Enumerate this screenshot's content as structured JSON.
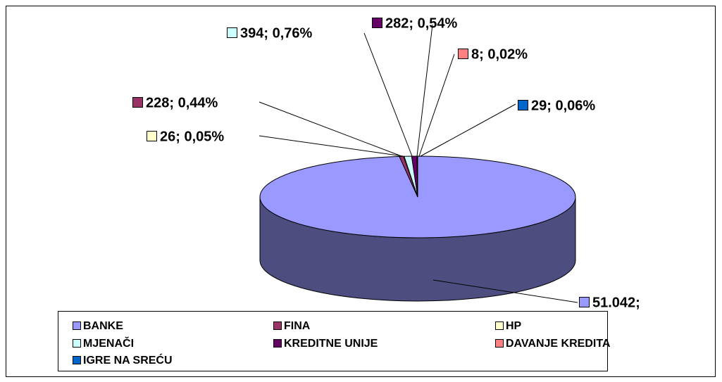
{
  "chart_data": {
    "type": "pie",
    "categories": [
      "BANKE",
      "FINA",
      "HP",
      "MJENAČI",
      "KREDITNE UNIJE",
      "DAVANJE KREDITA",
      "IGRE NA SREĆU"
    ],
    "values": [
      51042,
      228,
      26,
      394,
      282,
      8,
      29
    ],
    "value_labels": [
      "51.042;",
      "228; 0,44%",
      "26; 0,05%",
      "394; 0,76%",
      "282; 0,54%",
      "8; 0,02%",
      "29; 0,06%"
    ],
    "colors": [
      "#9999ff",
      "#993366",
      "#ffffcc",
      "#ccffff",
      "#660066",
      "#ff8080",
      "#0066cc"
    ],
    "legend": "bottom"
  }
}
